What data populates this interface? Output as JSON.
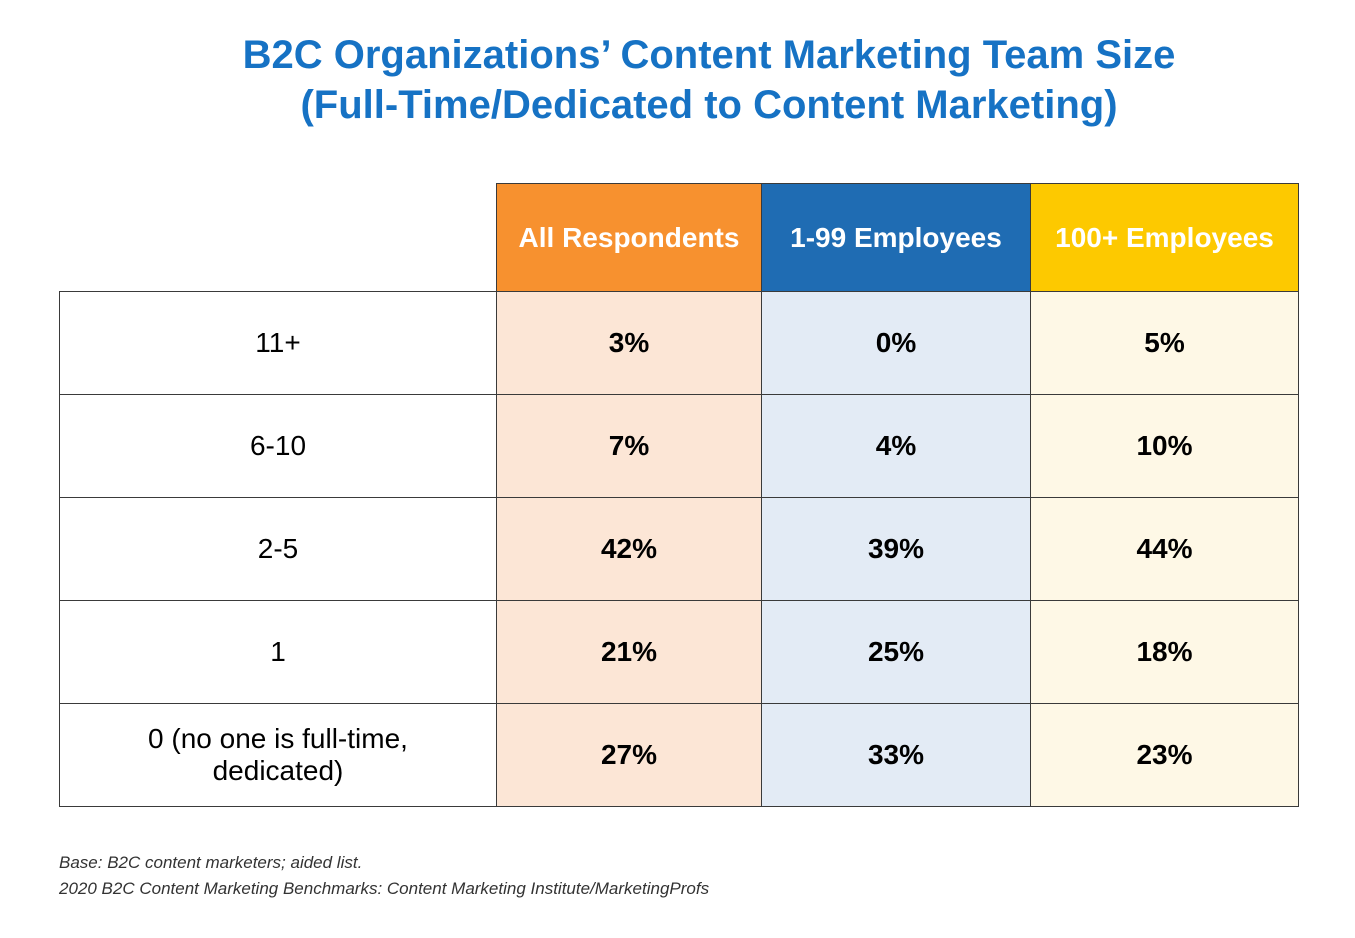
{
  "title": {
    "line1": "B2C Organizations’ Content Marketing Team Size",
    "line2": "(Full-Time/Dedicated to Content Marketing)"
  },
  "chart_data": {
    "type": "table",
    "columns": [
      {
        "label": "All Respondents",
        "header_color": "#f7912f",
        "cell_color": "#fce6d6"
      },
      {
        "label": "1-99 Employees",
        "header_color": "#1f6cb3",
        "cell_color": "#e3ebf5"
      },
      {
        "label": "100+ Employees",
        "header_color": "#fdc900",
        "cell_color": "#fef8e6"
      }
    ],
    "rows": [
      {
        "label": "11+",
        "values": [
          "3%",
          "0%",
          "5%"
        ]
      },
      {
        "label": "6-10",
        "values": [
          "7%",
          "4%",
          "10%"
        ]
      },
      {
        "label": "2-5",
        "values": [
          "42%",
          "39%",
          "44%"
        ]
      },
      {
        "label": "1",
        "values": [
          "21%",
          "25%",
          "18%"
        ]
      },
      {
        "label": "0 (no one is full-time, dedicated)",
        "label_lines": [
          "0 (no one is full-time,",
          "dedicated)"
        ],
        "values": [
          "27%",
          "33%",
          "23%"
        ]
      }
    ]
  },
  "footnote": {
    "line1": "Base: B2C content marketers; aided list.",
    "line2": "2020 B2C Content Marketing Benchmarks: Content Marketing Institute/MarketingProfs"
  }
}
